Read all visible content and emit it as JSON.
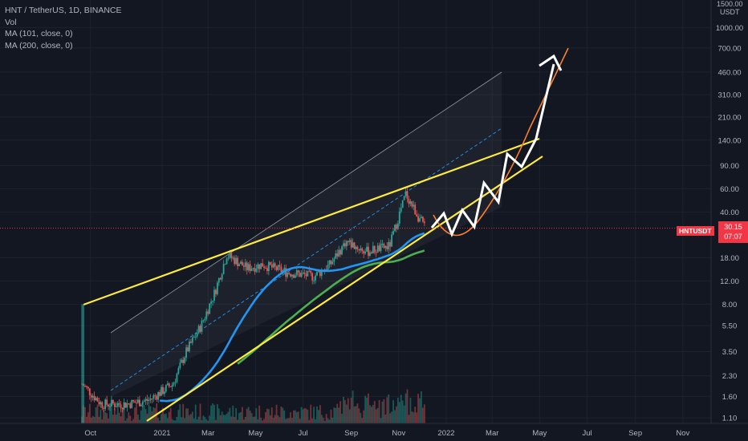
{
  "legend": {
    "symbol": "HNT / TetherUS, 1D, BINANCE",
    "vol": "Vol",
    "ma1": "MA (101, close, 0)",
    "ma2": "MA (200, close, 0)"
  },
  "price_axis": {
    "currency_top": "1500.00",
    "currency_unit": "USDT",
    "ticks": [
      "1000.00",
      "700.00",
      "460.00",
      "310.00",
      "210.00",
      "140.00",
      "90.00",
      "60.00",
      "40.00",
      "18.00",
      "12.00",
      "8.00",
      "5.50",
      "3.50",
      "2.30",
      "1.60",
      "1.10"
    ]
  },
  "time_axis": {
    "ticks": [
      "Oct",
      "2021",
      "Mar",
      "May",
      "Jul",
      "Sep",
      "Nov",
      "2022",
      "Mar",
      "May",
      "Jul",
      "Sep",
      "Nov"
    ]
  },
  "current_price": {
    "symbol": "HNTUSDT",
    "value": "30.15",
    "countdown": "07:07"
  },
  "colors": {
    "background": "#131722",
    "up": "#26a69a",
    "down": "#ef5350",
    "ma101": "#2196f3",
    "ma200": "#4caf50",
    "trendline": "#ffeb3b",
    "projection": "#ffffff",
    "curve": "#ff7f2a",
    "price_line": "#f23645"
  },
  "chart_data": {
    "type": "candlestick",
    "title": "HNT / TetherUS, 1D, BINANCE",
    "y_scale": "log",
    "ylim": [
      1.0,
      1500
    ],
    "x_range": [
      "2020-09-15",
      "2022-12-20"
    ],
    "approx_close_path": [
      {
        "date": "2020-09-20",
        "close": 2.0
      },
      {
        "date": "2020-10-15",
        "close": 1.4
      },
      {
        "date": "2020-11-15",
        "close": 1.4
      },
      {
        "date": "2020-12-15",
        "close": 1.5
      },
      {
        "date": "2021-01-15",
        "close": 2.0
      },
      {
        "date": "2021-02-01",
        "close": 3.5
      },
      {
        "date": "2021-02-20",
        "close": 5.5
      },
      {
        "date": "2021-03-10",
        "close": 10
      },
      {
        "date": "2021-03-25",
        "close": 19
      },
      {
        "date": "2021-04-20",
        "close": 15
      },
      {
        "date": "2021-05-10",
        "close": 16
      },
      {
        "date": "2021-06-10",
        "close": 14
      },
      {
        "date": "2021-07-15",
        "close": 13
      },
      {
        "date": "2021-08-05",
        "close": 16
      },
      {
        "date": "2021-08-25",
        "close": 24
      },
      {
        "date": "2021-09-20",
        "close": 20
      },
      {
        "date": "2021-10-20",
        "close": 22
      },
      {
        "date": "2021-11-10",
        "close": 55
      },
      {
        "date": "2021-11-25",
        "close": 38
      },
      {
        "date": "2021-12-05",
        "close": 30.15
      }
    ],
    "indicators": [
      {
        "name": "MA (101, close, 0)",
        "color": "#2196f3"
      },
      {
        "name": "MA (200, close, 0)",
        "color": "#4caf50"
      }
    ],
    "volume": true,
    "current_value": 30.15,
    "annotations": [
      "rising wedge trendlines",
      "projected zigzag path",
      "parabolic curve",
      "ascending channel"
    ]
  }
}
